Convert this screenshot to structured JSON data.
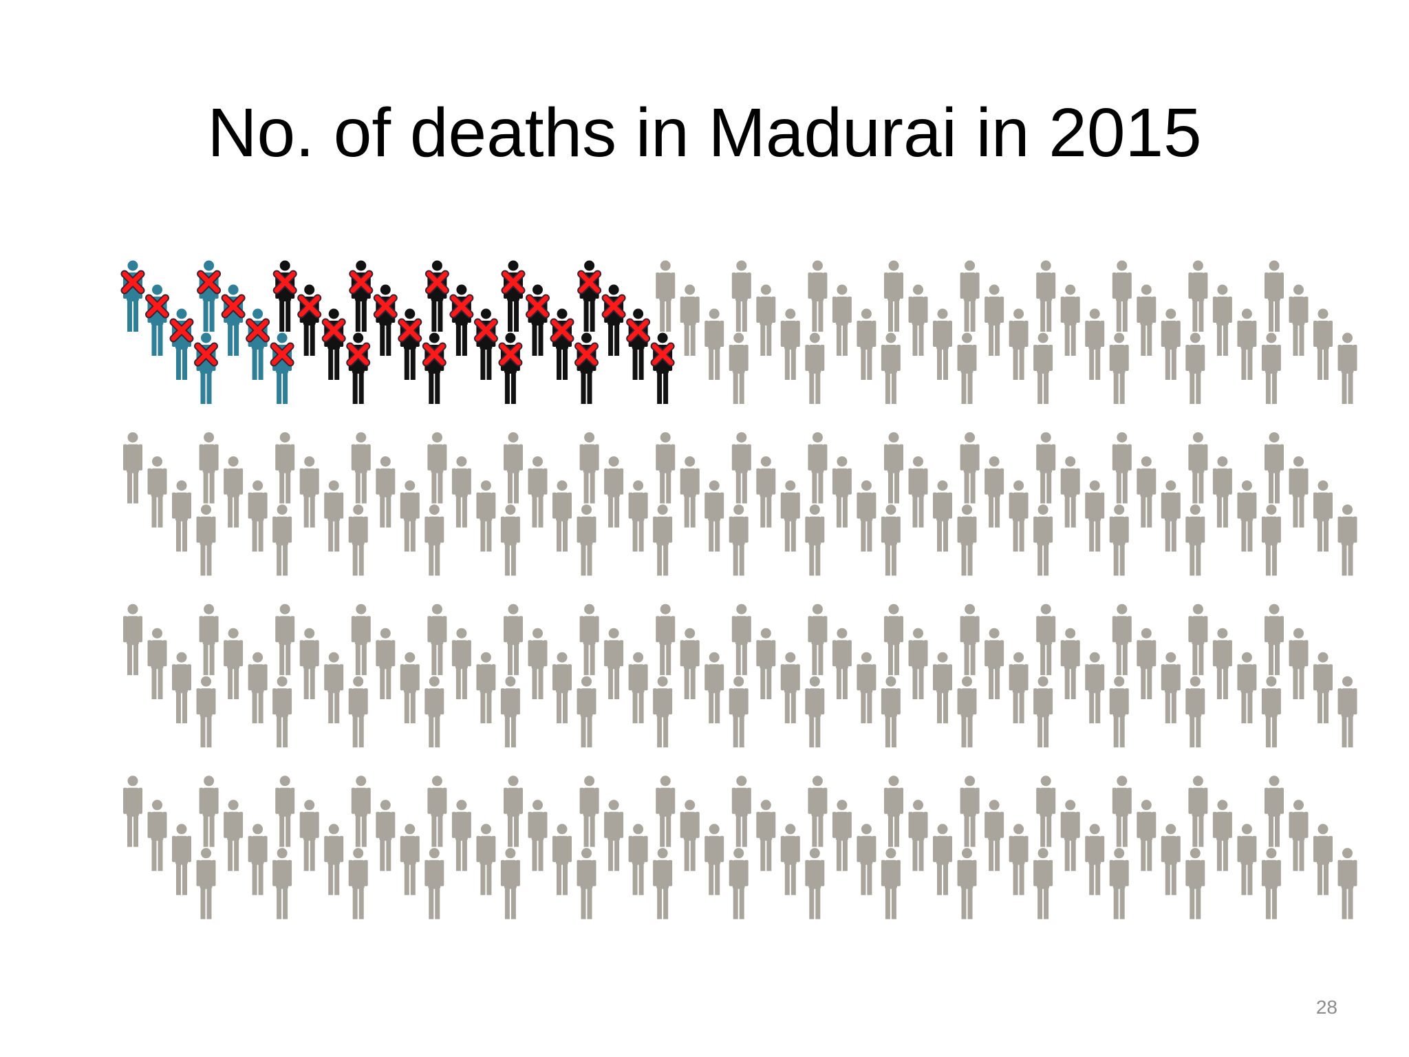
{
  "header": {
    "title": "No. of deaths in Madurai in 2015"
  },
  "footer": {
    "page_number": "28"
  }
}
